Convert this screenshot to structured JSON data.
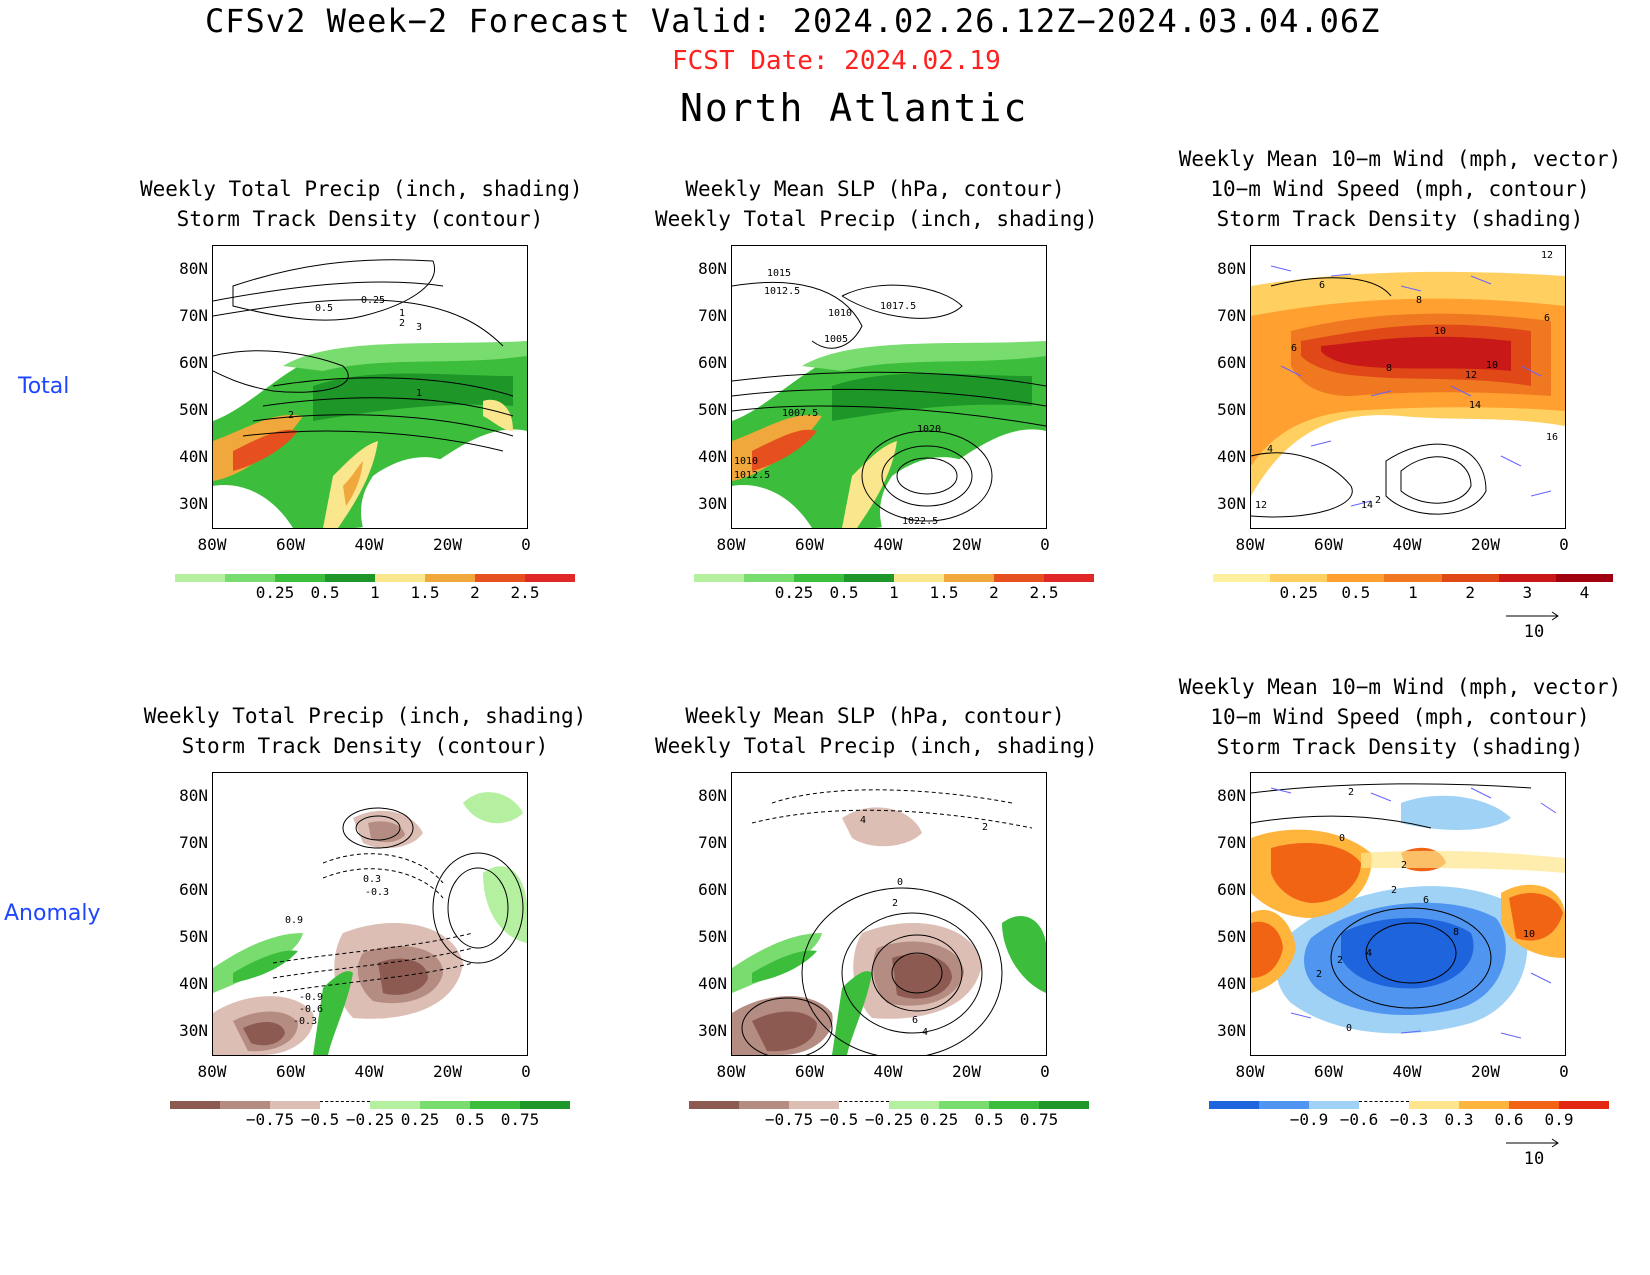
{
  "header": {
    "title": "CFSv2 Week−2 Forecast        Valid: 2024.02.26.12Z−2024.03.04.06Z",
    "fcst_date": "FCST Date: 2024.02.19",
    "region": "North Atlantic"
  },
  "rows": {
    "total": "Total",
    "anomaly": "Anomaly"
  },
  "axes": {
    "lat_labels": [
      "80N",
      "70N",
      "60N",
      "50N",
      "40N",
      "30N"
    ],
    "lon_labels": [
      "80W",
      "60W",
      "40W",
      "20W",
      "0"
    ]
  },
  "panels": {
    "p1": {
      "t1": "Weekly Total Precip (inch, shading)",
      "t2": "Storm Track Density (contour)"
    },
    "p2": {
      "t1": "Weekly Mean SLP (hPa, contour)",
      "t2": "Weekly Total Precip (inch, shading)"
    },
    "p3": {
      "t1": "Weekly Mean 10−m Wind (mph, vector)",
      "t2": "10−m Wind Speed (mph, contour)",
      "t3": "Storm Track Density (shading)"
    },
    "p4": {
      "t1": "Weekly Total Precip (inch, shading)",
      "t2": "Storm Track Density (contour)"
    },
    "p5": {
      "t1": "Weekly Mean SLP (hPa, contour)",
      "t2": "Weekly Total Precip (inch, shading)"
    },
    "p6": {
      "t1": "Weekly Mean 10−m Wind (mph, vector)",
      "t2": "10−m Wind Speed (mph, contour)",
      "t3": "Storm Track Density (shading)"
    }
  },
  "map_labels": {
    "p1": [
      "0.25",
      "0.5",
      "1",
      "2",
      "3",
      "1",
      "2"
    ],
    "p2": [
      "1015",
      "1012.5",
      "1010",
      "1017.5",
      "1005",
      "1007.5",
      "1020",
      "1010",
      "1012.5",
      "1022.5"
    ],
    "p3": [
      "12",
      "6",
      "8",
      "6",
      "10",
      "6",
      "8",
      "12",
      "10",
      "14",
      "16",
      "4",
      "12",
      "14",
      "2"
    ],
    "p4": [
      "0.3",
      "-0.3",
      "0.9",
      "-0.9",
      "-0.6",
      "-0.3"
    ],
    "p5": [
      "4",
      "2",
      "0",
      "2",
      "6",
      "4"
    ],
    "p6": [
      "2",
      "0",
      "2",
      "6",
      "2",
      "8",
      "10",
      "4",
      "2",
      "2",
      "0"
    ]
  },
  "colorbars": {
    "precip_total": {
      "labels": [
        "0.25",
        "0.5",
        "1",
        "1.5",
        "2",
        "2.5"
      ],
      "colors": [
        "#b4f0a0",
        "#78dc6e",
        "#3cbe3c",
        "#1e9628",
        "#fae68c",
        "#f0a83c",
        "#e6501e",
        "#e02828"
      ]
    },
    "density_total": {
      "labels": [
        "0.25",
        "0.5",
        "1",
        "2",
        "3",
        "4"
      ],
      "colors": [
        "#fff0a0",
        "#ffd060",
        "#ffa030",
        "#f07820",
        "#e04818",
        "#c81818",
        "#a00010"
      ]
    },
    "precip_anom": {
      "labels": [
        "−0.75",
        "−0.5",
        "−0.25",
        "0.25",
        "0.5",
        "0.75"
      ],
      "colors": [
        "#8c5a50",
        "#b48c82",
        "#dcbeb4",
        "#ffffff",
        "#b4f0a0",
        "#78dc6e",
        "#3cbe3c",
        "#1e9628"
      ]
    },
    "density_anom": {
      "labels": [
        "−0.9",
        "−0.6",
        "−0.3",
        "0.3",
        "0.6",
        "0.9"
      ],
      "colors": [
        "#1e64dc",
        "#5096f0",
        "#a0d2f5",
        "#ffffff",
        "#ffe68c",
        "#ffb43c",
        "#f06414",
        "#e02814"
      ]
    }
  },
  "vector_ref": "10",
  "colors": {
    "fcst_date": "#ff2020",
    "row_label": "#1e46ff",
    "vectors": "#6464ff"
  }
}
